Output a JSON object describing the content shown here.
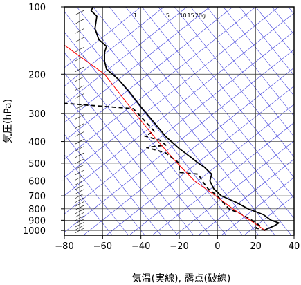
{
  "chart_data": {
    "type": "line",
    "xlabel": "気温(実線), 露点(破線)",
    "ylabel": "気圧(hPa)",
    "y_scale": "log",
    "y_reversed": true,
    "xlim": [
      -80,
      40
    ],
    "ylim": [
      1050,
      100
    ],
    "x_ticks": [
      -80,
      -60,
      -40,
      -20,
      0,
      20,
      40
    ],
    "y_ticks": [
      1000,
      900,
      800,
      700,
      600,
      500,
      400,
      300,
      200,
      100
    ],
    "grid": true,
    "mixing_ratio_labels": [
      {
        "text": "1",
        "t_at_top": -43
      },
      {
        "text": "5",
        "t_at_top": -26
      },
      {
        "text": "10",
        "t_at_top": -18
      },
      {
        "text": "15",
        "t_at_top": -14
      },
      {
        "text": "20g",
        "t_at_top": -9
      }
    ],
    "series": [
      {
        "style": "solid",
        "color": "#000000",
        "points": [
          [
            24,
            1000
          ],
          [
            27,
            975
          ],
          [
            30,
            950
          ],
          [
            32,
            925
          ],
          [
            28,
            900
          ],
          [
            24,
            850
          ],
          [
            16,
            800
          ],
          [
            10,
            750
          ],
          [
            2,
            700
          ],
          [
            -2,
            650
          ],
          [
            -4,
            600
          ],
          [
            -3,
            560
          ],
          [
            -4,
            550
          ],
          [
            -7,
            520
          ],
          [
            -10,
            500
          ],
          [
            -14,
            470
          ],
          [
            -20,
            430
          ],
          [
            -27,
            380
          ],
          [
            -33,
            330
          ],
          [
            -40,
            280
          ],
          [
            -46,
            240
          ],
          [
            -52,
            210
          ],
          [
            -58,
            190
          ],
          [
            -59,
            175
          ],
          [
            -59,
            160
          ],
          [
            -58,
            150
          ],
          [
            -62,
            140
          ],
          [
            -64,
            125
          ],
          [
            -63,
            110
          ],
          [
            -66,
            104
          ],
          [
            -65,
            100
          ]
        ]
      },
      {
        "style": "dashed",
        "color": "#000000",
        "points": [
          [
            25,
            1000
          ],
          [
            20,
            975
          ],
          [
            22,
            950
          ],
          [
            18,
            900
          ],
          [
            13,
            850
          ],
          [
            6,
            800
          ],
          [
            3,
            750
          ],
          [
            0,
            700
          ],
          [
            -5,
            650
          ],
          [
            -8,
            600
          ],
          [
            -10,
            560
          ],
          [
            -20,
            550
          ],
          [
            -20,
            500
          ],
          [
            -27,
            450
          ],
          [
            -37,
            425
          ],
          [
            -27,
            415
          ],
          [
            -30,
            395
          ],
          [
            -38,
            378
          ],
          [
            -33,
            360
          ],
          [
            -40,
            310
          ],
          [
            -44,
            285
          ],
          [
            -80,
            270
          ]
        ]
      },
      {
        "style": "solid",
        "color": "#ff0000",
        "points": [
          [
            25,
            1000
          ],
          [
            17,
            900
          ],
          [
            8,
            800
          ],
          [
            -1,
            700
          ],
          [
            -12,
            600
          ],
          [
            -21,
            500
          ],
          [
            -31,
            400
          ],
          [
            -43,
            300
          ],
          [
            -59,
            200
          ],
          [
            -84,
            140
          ]
        ]
      }
    ],
    "wind_profile": {
      "x_position": -72,
      "pressures": [
        1000,
        970,
        940,
        910,
        880,
        850,
        820,
        790,
        760,
        730,
        700,
        670,
        640,
        610,
        580,
        550,
        520,
        490,
        460,
        430,
        400,
        370,
        340,
        310,
        280,
        250,
        230,
        210,
        190,
        170,
        155,
        140,
        128,
        116,
        106
      ]
    }
  }
}
